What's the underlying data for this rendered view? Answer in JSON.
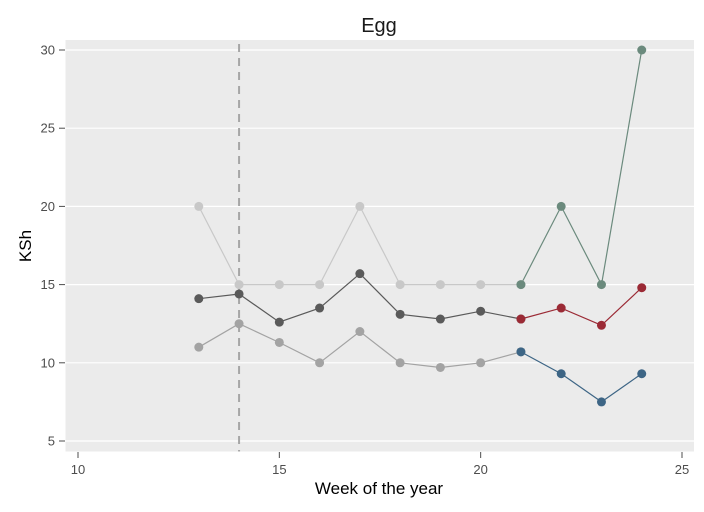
{
  "chart_data": {
    "type": "line",
    "title": "Egg",
    "xlabel": "Week of the year",
    "ylabel": "KSh",
    "xlim": [
      10,
      25
    ],
    "ylim": [
      4.5,
      30.6
    ],
    "xticks": [
      10,
      15,
      20,
      25
    ],
    "yticks": [
      5,
      10,
      15,
      20,
      25,
      30
    ],
    "grid": true,
    "vline": 14,
    "series": [
      {
        "color": "#c8c8c8",
        "x": [
          13,
          14,
          15,
          16,
          17,
          18,
          19,
          20,
          21
        ],
        "y": [
          20,
          15,
          15,
          15,
          20,
          15,
          15,
          15,
          15
        ]
      },
      {
        "color": "#6b8a7d",
        "x": [
          21,
          22,
          23,
          24
        ],
        "y": [
          15,
          20,
          15,
          30
        ]
      },
      {
        "color": "#5a5a5a",
        "x": [
          13,
          14,
          15,
          16,
          17,
          18,
          19,
          20,
          21
        ],
        "y": [
          14.1,
          14.4,
          12.6,
          13.5,
          15.7,
          13.1,
          12.8,
          13.3,
          12.8
        ]
      },
      {
        "color": "#9b2a35",
        "x": [
          21,
          22,
          23,
          24
        ],
        "y": [
          12.8,
          13.5,
          12.4,
          14.8
        ]
      },
      {
        "color": "#a3a3a3",
        "x": [
          13,
          14,
          15,
          16,
          17,
          18,
          19,
          20,
          21
        ],
        "y": [
          11.0,
          12.5,
          11.3,
          10.0,
          12.0,
          10.0,
          9.7,
          10.0,
          10.7
        ]
      },
      {
        "color": "#3d6585",
        "x": [
          21,
          22,
          23,
          24
        ],
        "y": [
          10.7,
          9.3,
          7.5,
          9.3
        ]
      }
    ]
  }
}
